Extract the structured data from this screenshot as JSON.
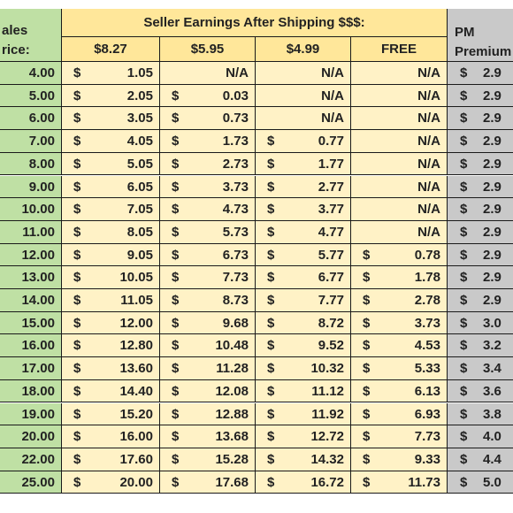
{
  "header": {
    "sales_line1": "ales",
    "sales_line2": "rice:",
    "earnings_title": "Seller Earnings After Shipping $$$:",
    "columns": [
      "$8.27",
      "$5.95",
      "$4.99",
      "FREE"
    ],
    "pm_line1": "PM",
    "pm_line2": "Premium"
  },
  "currency": "$",
  "na_text": "N/A",
  "rows": [
    {
      "price": "4.00",
      "vals": [
        "1.05",
        "N/A",
        "N/A",
        "N/A"
      ],
      "pm": "2.9"
    },
    {
      "price": "5.00",
      "vals": [
        "2.05",
        "0.03",
        "N/A",
        "N/A"
      ],
      "pm": "2.9"
    },
    {
      "price": "6.00",
      "vals": [
        "3.05",
        "0.73",
        "N/A",
        "N/A"
      ],
      "pm": "2.9"
    },
    {
      "price": "7.00",
      "vals": [
        "4.05",
        "1.73",
        "0.77",
        "N/A"
      ],
      "pm": "2.9"
    },
    {
      "price": "8.00",
      "vals": [
        "5.05",
        "2.73",
        "1.77",
        "N/A"
      ],
      "pm": "2.9"
    },
    {
      "price": "9.00",
      "vals": [
        "6.05",
        "3.73",
        "2.77",
        "N/A"
      ],
      "pm": "2.9"
    },
    {
      "price": "10.00",
      "vals": [
        "7.05",
        "4.73",
        "3.77",
        "N/A"
      ],
      "pm": "2.9"
    },
    {
      "price": "11.00",
      "vals": [
        "8.05",
        "5.73",
        "4.77",
        "N/A"
      ],
      "pm": "2.9"
    },
    {
      "price": "12.00",
      "vals": [
        "9.05",
        "6.73",
        "5.77",
        "0.78"
      ],
      "pm": "2.9"
    },
    {
      "price": "13.00",
      "vals": [
        "10.05",
        "7.73",
        "6.77",
        "1.78"
      ],
      "pm": "2.9"
    },
    {
      "price": "14.00",
      "vals": [
        "11.05",
        "8.73",
        "7.77",
        "2.78"
      ],
      "pm": "2.9"
    },
    {
      "price": "15.00",
      "vals": [
        "12.00",
        "9.68",
        "8.72",
        "3.73"
      ],
      "pm": "3.0"
    },
    {
      "price": "16.00",
      "vals": [
        "12.80",
        "10.48",
        "9.52",
        "4.53"
      ],
      "pm": "3.2"
    },
    {
      "price": "17.00",
      "vals": [
        "13.60",
        "11.28",
        "10.32",
        "5.33"
      ],
      "pm": "3.4"
    },
    {
      "price": "18.00",
      "vals": [
        "14.40",
        "12.08",
        "11.12",
        "6.13"
      ],
      "pm": "3.6"
    },
    {
      "price": "19.00",
      "vals": [
        "15.20",
        "12.88",
        "11.92",
        "6.93"
      ],
      "pm": "3.8"
    },
    {
      "price": "20.00",
      "vals": [
        "16.00",
        "13.68",
        "12.72",
        "7.73"
      ],
      "pm": "4.0"
    },
    {
      "price": "22.00",
      "vals": [
        "17.60",
        "15.28",
        "14.32",
        "9.33"
      ],
      "pm": "4.4"
    },
    {
      "price": "25.00",
      "vals": [
        "20.00",
        "17.68",
        "16.72",
        "11.73"
      ],
      "pm": "5.0"
    }
  ]
}
